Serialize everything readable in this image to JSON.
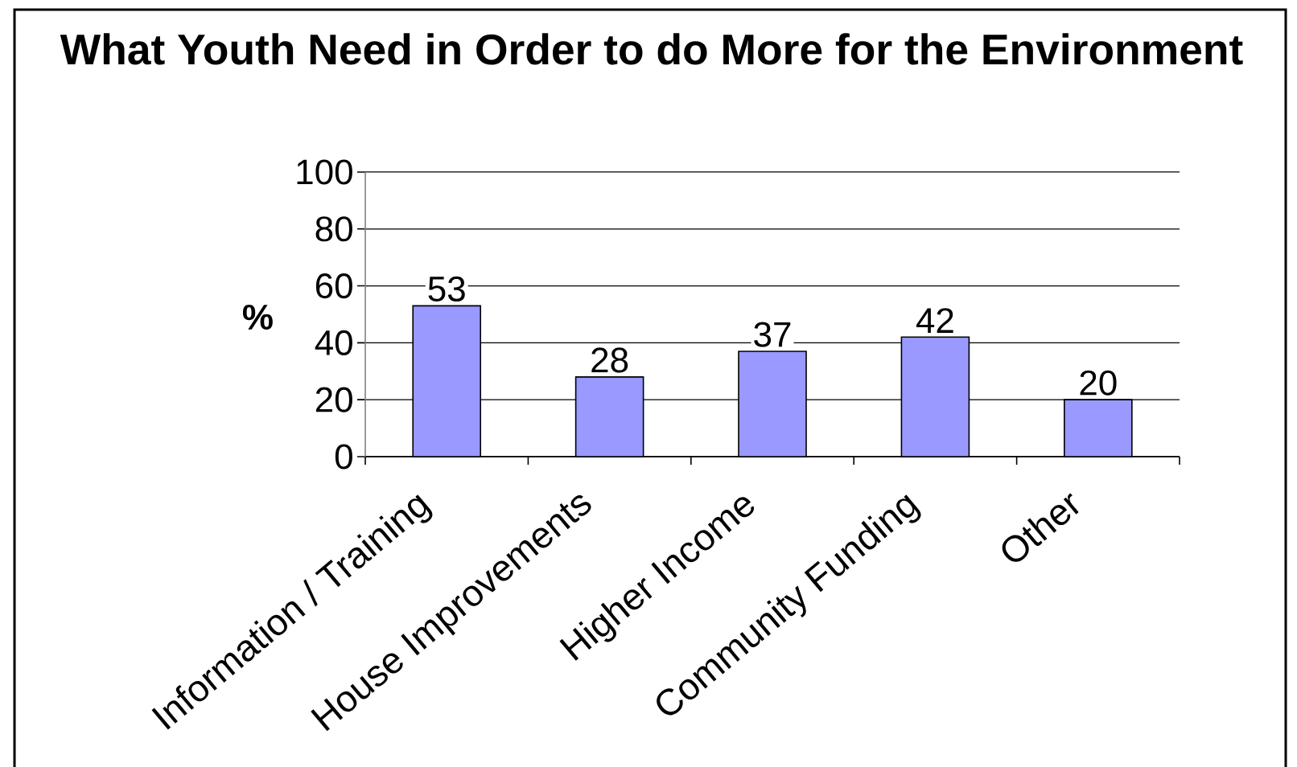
{
  "chart_data": {
    "type": "bar",
    "title": "What Youth Need in Order to do More for the Environment",
    "ylabel": "%",
    "categories": [
      "Information / Training",
      "House Improvements",
      "Higher Income",
      "Community Funding",
      "Other"
    ],
    "values": [
      53,
      28,
      37,
      42,
      20
    ],
    "color": "#9999ff",
    "ylim": [
      0,
      100
    ],
    "yticks": [
      0,
      20,
      40,
      60,
      80,
      100
    ],
    "grid": "y",
    "data_labels": true
  }
}
